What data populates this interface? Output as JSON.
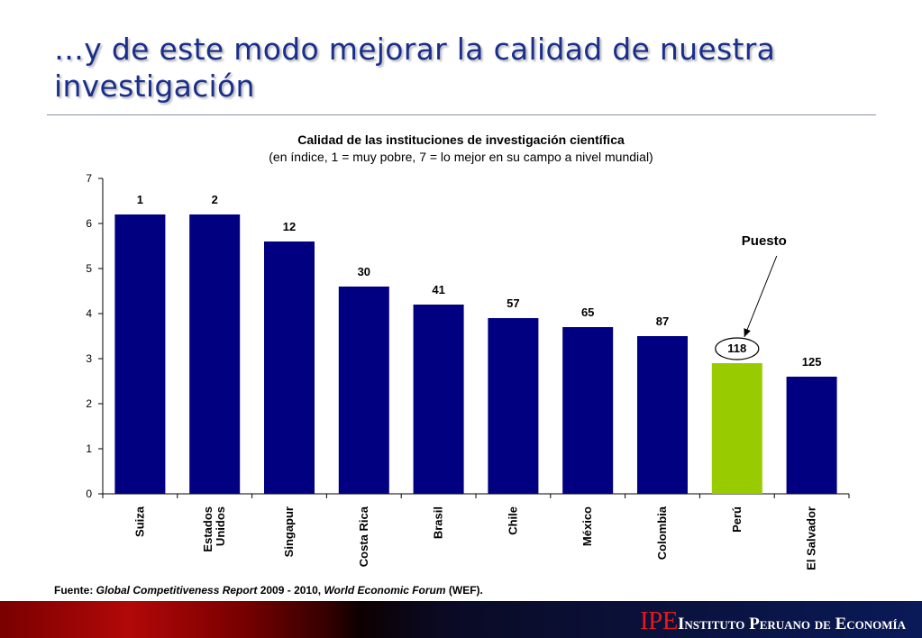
{
  "slide": {
    "title": "…y de este modo mejorar la calidad de nuestra investigación"
  },
  "chart_data": {
    "type": "bar",
    "title": "Calidad de las instituciones de investigación científica",
    "subtitle": "(en índice, 1 = muy pobre, 7 = lo mejor en su campo a nivel mundial)",
    "categories": [
      "Suiza",
      "Estados Unidos",
      "Singapur",
      "Costa Rica",
      "Brasil",
      "Chile",
      "México",
      "Colombia",
      "Perú",
      "El Salvador"
    ],
    "values": [
      6.2,
      6.2,
      5.6,
      4.6,
      4.2,
      3.9,
      3.7,
      3.5,
      2.9,
      2.6
    ],
    "data_labels": [
      "1",
      "2",
      "12",
      "30",
      "41",
      "57",
      "65",
      "87",
      "118",
      "125"
    ],
    "highlight_category": "Perú",
    "ylim": [
      0,
      7
    ],
    "yticks": [
      "0",
      "1",
      "2",
      "3",
      "4",
      "5",
      "6",
      "7"
    ],
    "grid": false,
    "xlabel": "",
    "ylabel": "",
    "annotation": {
      "text": "Puesto",
      "target_category": "Perú"
    },
    "colors": {
      "bar": "#000080",
      "highlight": "#99cc00",
      "axis": "#000000"
    }
  },
  "source": {
    "prefix": "Fuente: ",
    "report": "Global Competitiveness Report",
    "years": " 2009 - 2010, ",
    "org": "World Economic Forum",
    "suffix": " (WEF)."
  },
  "footer": {
    "logo_text": "IPE",
    "institution": "Instituto Peruano de Economía",
    "colors": {
      "logo": "#e3191b",
      "institution": "#ffffff"
    }
  }
}
